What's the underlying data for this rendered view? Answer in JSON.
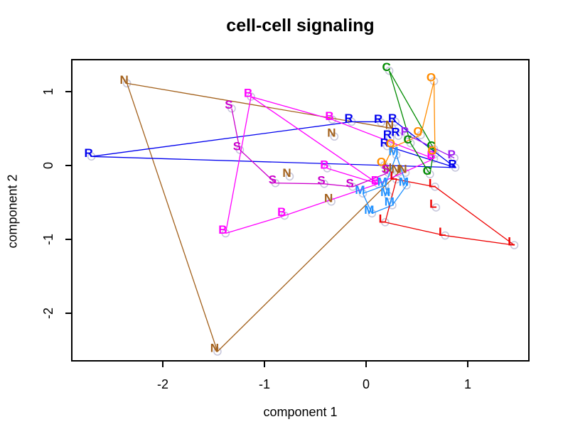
{
  "title": "cell-cell signaling",
  "x_axis": {
    "label": "component 1",
    "ticks": [
      {
        "v": -2,
        "label": "-2"
      },
      {
        "v": -1,
        "label": "-1"
      },
      {
        "v": 0,
        "label": "0"
      },
      {
        "v": 1,
        "label": "1"
      }
    ]
  },
  "y_axis": {
    "label": "component 2",
    "ticks": [
      {
        "v": -2,
        "label": "-2"
      },
      {
        "v": -1,
        "label": "-1"
      },
      {
        "v": 0,
        "label": "0"
      },
      {
        "v": 1,
        "label": "1"
      }
    ]
  },
  "chart_data": {
    "type": "scatter",
    "title": "cell-cell signaling",
    "xlabel": "component 1",
    "ylabel": "component 2",
    "xlim": [
      -2.9,
      1.6
    ],
    "ylim": [
      -2.65,
      1.45
    ],
    "grid": false,
    "legend": "none",
    "point_symbol": "open-circle",
    "point_symbol_color": "#C8C8DC",
    "groups": [
      {
        "label": "N",
        "color": "#A3611C",
        "points": [
          [
            -2.38,
            1.16
          ],
          [
            0.23,
            0.55
          ],
          [
            -0.34,
            0.44
          ],
          [
            -0.78,
            -0.1
          ],
          [
            0.21,
            -0.03
          ],
          [
            0.29,
            -0.05
          ],
          [
            0.36,
            -0.05
          ],
          [
            -0.37,
            -0.44
          ],
          [
            -1.49,
            -2.47
          ]
        ],
        "segments": [
          [
            0,
            8
          ],
          [
            0,
            1
          ],
          [
            8,
            5
          ]
        ]
      },
      {
        "label": "R",
        "color": "#0000EE",
        "points": [
          [
            -2.73,
            0.17
          ],
          [
            -0.17,
            0.64
          ],
          [
            0.12,
            0.63
          ],
          [
            0.26,
            0.64
          ],
          [
            0.21,
            0.42
          ],
          [
            0.29,
            0.45
          ],
          [
            0.18,
            0.31
          ],
          [
            0.85,
            0.02
          ]
        ],
        "segments": [
          [
            0,
            1
          ],
          [
            1,
            3
          ],
          [
            0,
            7
          ],
          [
            6,
            7
          ],
          [
            3,
            7
          ]
        ]
      },
      {
        "label": "B",
        "color": "#FF00FF",
        "points": [
          [
            -1.16,
            0.98
          ],
          [
            -0.36,
            0.67
          ],
          [
            -0.41,
            0.01
          ],
          [
            0.09,
            -0.2
          ],
          [
            0.64,
            0.14
          ],
          [
            -0.83,
            -0.63
          ],
          [
            -1.41,
            -0.87
          ]
        ],
        "segments": [
          [
            0,
            6
          ],
          [
            0,
            1
          ],
          [
            0,
            3
          ],
          [
            1,
            4
          ],
          [
            2,
            3
          ],
          [
            3,
            4
          ],
          [
            6,
            5
          ],
          [
            5,
            3
          ]
        ]
      },
      {
        "label": "S",
        "color": "#CC00CC",
        "points": [
          [
            -1.35,
            0.82
          ],
          [
            -1.27,
            0.26
          ],
          [
            -0.92,
            -0.19
          ],
          [
            -0.44,
            -0.2
          ],
          [
            -0.16,
            -0.24
          ],
          [
            0.19,
            -0.05
          ]
        ],
        "segments": [
          [
            0,
            1
          ],
          [
            1,
            2
          ],
          [
            2,
            3
          ],
          [
            3,
            4
          ],
          [
            4,
            5
          ]
        ]
      },
      {
        "label": "M",
        "color": "#1E90FF",
        "points": [
          [
            0.27,
            0.19
          ],
          [
            0.16,
            -0.22
          ],
          [
            0.37,
            -0.22
          ],
          [
            -0.06,
            -0.33
          ],
          [
            0.19,
            -0.36
          ],
          [
            0.23,
            -0.49
          ],
          [
            0.03,
            -0.6
          ]
        ],
        "segments": [
          [
            0,
            1
          ],
          [
            1,
            3
          ],
          [
            1,
            4
          ],
          [
            3,
            6
          ],
          [
            6,
            5
          ],
          [
            5,
            2
          ],
          [
            2,
            0
          ]
        ]
      },
      {
        "label": "L",
        "color": "#EE0000",
        "points": [
          [
            0.27,
            -0.14
          ],
          [
            0.65,
            -0.24
          ],
          [
            0.66,
            -0.52
          ],
          [
            0.16,
            -0.72
          ],
          [
            0.75,
            -0.9
          ],
          [
            1.43,
            -1.03
          ]
        ],
        "segments": [
          [
            0,
            1
          ],
          [
            0,
            3
          ],
          [
            1,
            5
          ],
          [
            3,
            4
          ],
          [
            4,
            5
          ]
        ]
      },
      {
        "label": "C",
        "color": "#008B00",
        "points": [
          [
            0.2,
            1.33
          ],
          [
            0.41,
            0.35
          ],
          [
            0.64,
            0.27
          ],
          [
            0.6,
            -0.07
          ]
        ],
        "segments": [
          [
            0,
            1
          ],
          [
            0,
            2
          ],
          [
            1,
            3
          ],
          [
            2,
            3
          ]
        ]
      },
      {
        "label": "O",
        "color": "#FF8C00",
        "points": [
          [
            0.64,
            1.19
          ],
          [
            0.51,
            0.46
          ],
          [
            0.24,
            0.3
          ],
          [
            0.65,
            0.2
          ],
          [
            0.15,
            0.05
          ]
        ],
        "segments": [
          [
            0,
            3
          ],
          [
            0,
            1
          ],
          [
            1,
            2
          ],
          [
            2,
            4
          ]
        ]
      },
      {
        "label": "P",
        "color": "#A020F0",
        "points": [
          [
            0.38,
            0.46
          ],
          [
            0.84,
            0.15
          ]
        ],
        "segments": [
          [
            0,
            1
          ]
        ]
      }
    ]
  }
}
